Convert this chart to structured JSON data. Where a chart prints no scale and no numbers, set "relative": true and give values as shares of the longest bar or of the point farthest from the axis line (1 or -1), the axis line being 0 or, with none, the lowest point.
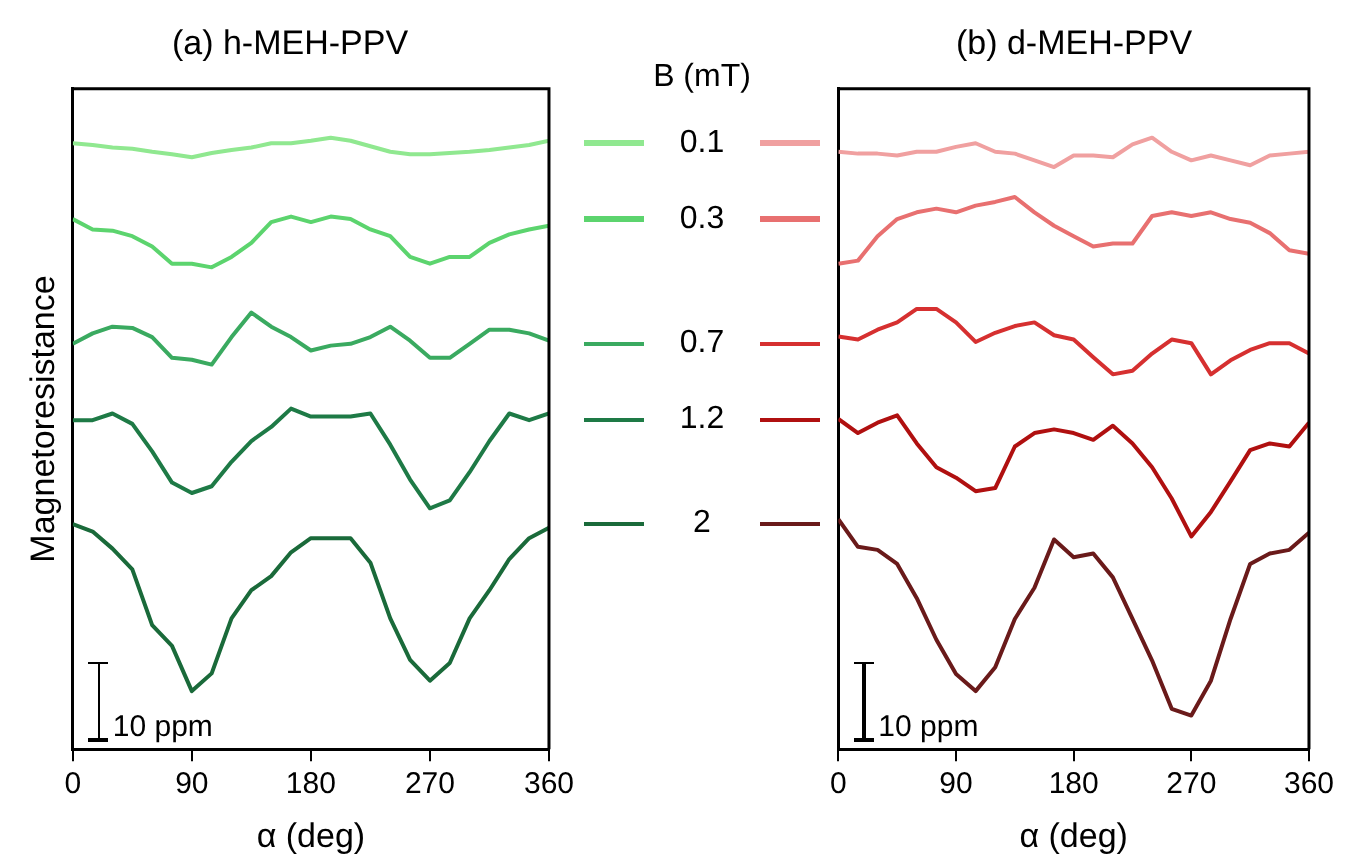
{
  "chart_data": [
    {
      "type": "line",
      "title": "(a) h-MEH-PPV",
      "xlabel": "α (deg)",
      "ylabel": "Magnetoresistance",
      "relative": true,
      "xlim": [
        0,
        360
      ],
      "xticks": [
        0,
        90,
        180,
        270,
        360
      ],
      "grid": false,
      "marker": "none",
      "line_style": "solid",
      "legend": "right",
      "legend_title": "B (mT)",
      "annotations": [
        "10 ppm"
      ],
      "x": [
        0,
        15,
        30,
        45,
        60,
        75,
        90,
        105,
        120,
        135,
        150,
        165,
        180,
        195,
        210,
        225,
        240,
        255,
        270,
        285,
        300,
        315,
        330,
        345,
        360
      ],
      "series": [
        {
          "name": "0.1",
          "color": "#90e890",
          "values": [
            0.991,
            0.988,
            0.984,
            0.982,
            0.977,
            0.973,
            0.968,
            0.975,
            0.98,
            0.984,
            0.991,
            0.991,
            0.995,
            1.0,
            0.995,
            0.986,
            0.977,
            0.973,
            0.973,
            0.975,
            0.977,
            0.98,
            0.984,
            0.988,
            0.995
          ]
        },
        {
          "name": "0.3",
          "color": "#5cd46e",
          "values": [
            0.867,
            0.85,
            0.848,
            0.839,
            0.822,
            0.794,
            0.794,
            0.788,
            0.805,
            0.828,
            0.862,
            0.871,
            0.862,
            0.871,
            0.867,
            0.85,
            0.839,
            0.805,
            0.794,
            0.805,
            0.805,
            0.828,
            0.842,
            0.85,
            0.856
          ]
        },
        {
          "name": "0.7",
          "color": "#3aaa60",
          "values": [
            0.663,
            0.68,
            0.691,
            0.689,
            0.674,
            0.64,
            0.637,
            0.629,
            0.674,
            0.714,
            0.691,
            0.674,
            0.652,
            0.66,
            0.663,
            0.674,
            0.691,
            0.668,
            0.64,
            0.64,
            0.663,
            0.686,
            0.686,
            0.68,
            0.668
          ]
        },
        {
          "name": "1.2",
          "color": "#1e7a46",
          "values": [
            0.538,
            0.538,
            0.549,
            0.532,
            0.487,
            0.436,
            0.419,
            0.43,
            0.47,
            0.504,
            0.527,
            0.557,
            0.544,
            0.544,
            0.544,
            0.549,
            0.498,
            0.441,
            0.394,
            0.407,
            0.453,
            0.504,
            0.549,
            0.538,
            0.549
          ]
        },
        {
          "name": "2",
          "color": "#1a6a3a",
          "values": [
            0.368,
            0.356,
            0.328,
            0.294,
            0.203,
            0.169,
            0.095,
            0.124,
            0.214,
            0.26,
            0.283,
            0.322,
            0.345,
            0.345,
            0.345,
            0.305,
            0.214,
            0.146,
            0.112,
            0.141,
            0.214,
            0.26,
            0.311,
            0.345,
            0.362
          ]
        }
      ]
    },
    {
      "type": "line",
      "title": "(b) d-MEH-PPV",
      "xlabel": "α (deg)",
      "relative": true,
      "xlim": [
        0,
        360
      ],
      "xticks": [
        0,
        90,
        180,
        270,
        360
      ],
      "grid": false,
      "marker": "none",
      "line_style": "solid",
      "annotations": [
        "10 ppm"
      ],
      "x": [
        0,
        15,
        30,
        45,
        60,
        75,
        90,
        105,
        120,
        135,
        150,
        165,
        180,
        195,
        210,
        225,
        240,
        255,
        270,
        285,
        300,
        315,
        330,
        345,
        360
      ],
      "series": [
        {
          "color": "#f0a0a0",
          "values": [
            0.977,
            0.974,
            0.974,
            0.971,
            0.977,
            0.977,
            0.985,
            0.991,
            0.977,
            0.974,
            0.963,
            0.952,
            0.971,
            0.971,
            0.968,
            0.989,
            1.0,
            0.977,
            0.963,
            0.971,
            0.963,
            0.955,
            0.971,
            0.974,
            0.977
          ]
        },
        {
          "color": "#e87070",
          "values": [
            0.794,
            0.799,
            0.839,
            0.867,
            0.878,
            0.884,
            0.878,
            0.889,
            0.895,
            0.903,
            0.878,
            0.856,
            0.839,
            0.822,
            0.827,
            0.827,
            0.872,
            0.878,
            0.872,
            0.878,
            0.867,
            0.861,
            0.844,
            0.816,
            0.81
          ]
        },
        {
          "color": "#d63030",
          "values": [
            0.675,
            0.67,
            0.686,
            0.698,
            0.72,
            0.72,
            0.698,
            0.666,
            0.681,
            0.692,
            0.698,
            0.677,
            0.67,
            0.641,
            0.613,
            0.619,
            0.647,
            0.67,
            0.664,
            0.613,
            0.636,
            0.653,
            0.664,
            0.664,
            0.647
          ]
        },
        {
          "color": "#b01010",
          "values": [
            0.54,
            0.517,
            0.534,
            0.546,
            0.5,
            0.461,
            0.444,
            0.422,
            0.427,
            0.495,
            0.517,
            0.523,
            0.517,
            0.506,
            0.529,
            0.5,
            0.461,
            0.41,
            0.348,
            0.388,
            0.438,
            0.489,
            0.5,
            0.495,
            0.534
          ]
        },
        {
          "color": "#6a1a1a",
          "values": [
            0.376,
            0.331,
            0.326,
            0.303,
            0.247,
            0.179,
            0.123,
            0.095,
            0.134,
            0.213,
            0.264,
            0.343,
            0.314,
            0.32,
            0.281,
            0.213,
            0.145,
            0.066,
            0.055,
            0.112,
            0.213,
            0.303,
            0.32,
            0.326,
            0.354
          ]
        }
      ]
    }
  ]
}
